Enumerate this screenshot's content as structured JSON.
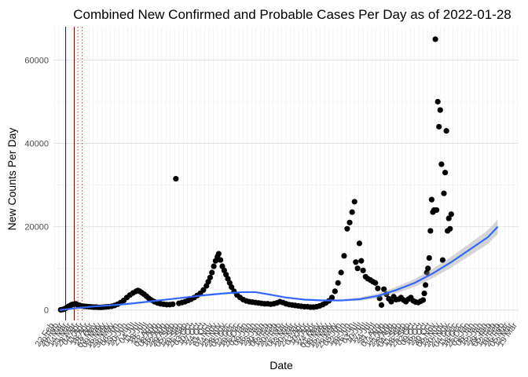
{
  "chart_data": {
    "type": "scatter",
    "title": "Combined New Confirmed and Probable Cases Per Day as of 2022-01-28",
    "xlabel": "Date",
    "ylabel": "New Counts Per Day",
    "yticks": [
      0,
      20000,
      40000,
      60000
    ],
    "ylim": [
      -2500,
      68000
    ],
    "xlim_days": [
      -10,
      750
    ],
    "grid": true,
    "start_date": "2020-03-01",
    "vlines": [
      {
        "day": 10,
        "color": "#0000cc",
        "style": "solid"
      },
      {
        "day": 24,
        "color": "#8b0000",
        "style": "solid"
      },
      {
        "day": 30,
        "color": "#cc3333",
        "style": "dotted"
      },
      {
        "day": 37,
        "color": "#cc3333",
        "style": "dotted"
      }
    ],
    "trend_color": "#3366ff",
    "trend": [
      [
        0,
        0
      ],
      [
        30,
        500
      ],
      [
        60,
        900
      ],
      [
        90,
        1200
      ],
      [
        120,
        1600
      ],
      [
        150,
        2100
      ],
      [
        180,
        2600
      ],
      [
        210,
        3100
      ],
      [
        240,
        3600
      ],
      [
        270,
        4000
      ],
      [
        300,
        4300
      ],
      [
        320,
        4300
      ],
      [
        340,
        3800
      ],
      [
        370,
        3000
      ],
      [
        400,
        2500
      ],
      [
        430,
        2300
      ],
      [
        460,
        2300
      ],
      [
        490,
        2600
      ],
      [
        520,
        3400
      ],
      [
        550,
        4800
      ],
      [
        580,
        6500
      ],
      [
        610,
        8800
      ],
      [
        640,
        11500
      ],
      [
        670,
        14500
      ],
      [
        700,
        17500
      ],
      [
        716,
        20000
      ]
    ],
    "points": [
      [
        2,
        50
      ],
      [
        5,
        120
      ],
      [
        8,
        250
      ],
      [
        10,
        400
      ],
      [
        12,
        600
      ],
      [
        15,
        900
      ],
      [
        18,
        1100
      ],
      [
        20,
        1300
      ],
      [
        23,
        1400
      ],
      [
        26,
        1500
      ],
      [
        28,
        1350
      ],
      [
        30,
        1200
      ],
      [
        33,
        1100
      ],
      [
        36,
        1000
      ],
      [
        40,
        900
      ],
      [
        44,
        850
      ],
      [
        48,
        800
      ],
      [
        52,
        750
      ],
      [
        56,
        700
      ],
      [
        60,
        700
      ],
      [
        64,
        650
      ],
      [
        68,
        650
      ],
      [
        72,
        700
      ],
      [
        76,
        750
      ],
      [
        80,
        800
      ],
      [
        85,
        900
      ],
      [
        90,
        1100
      ],
      [
        95,
        1400
      ],
      [
        100,
        1800
      ],
      [
        105,
        2300
      ],
      [
        110,
        3000
      ],
      [
        115,
        3600
      ],
      [
        120,
        4100
      ],
      [
        125,
        4500
      ],
      [
        128,
        4700
      ],
      [
        131,
        4500
      ],
      [
        134,
        4200
      ],
      [
        138,
        3800
      ],
      [
        142,
        3300
      ],
      [
        146,
        2800
      ],
      [
        150,
        2400
      ],
      [
        155,
        2000
      ],
      [
        160,
        1700
      ],
      [
        165,
        1500
      ],
      [
        170,
        1400
      ],
      [
        175,
        1300
      ],
      [
        180,
        1300
      ],
      [
        185,
        1400
      ],
      [
        190,
        31500
      ],
      [
        195,
        1600
      ],
      [
        200,
        1800
      ],
      [
        205,
        2000
      ],
      [
        210,
        2300
      ],
      [
        215,
        2600
      ],
      [
        220,
        3000
      ],
      [
        225,
        3500
      ],
      [
        230,
        4000
      ],
      [
        235,
        4800
      ],
      [
        240,
        5800
      ],
      [
        243,
        6800
      ],
      [
        246,
        7800
      ],
      [
        249,
        9000
      ],
      [
        252,
        10500
      ],
      [
        255,
        11800
      ],
      [
        258,
        12800
      ],
      [
        260,
        13500
      ],
      [
        263,
        12000
      ],
      [
        266,
        10500
      ],
      [
        269,
        9500
      ],
      [
        272,
        8500
      ],
      [
        275,
        7500
      ],
      [
        278,
        6500
      ],
      [
        281,
        5500
      ],
      [
        285,
        4500
      ],
      [
        290,
        3600
      ],
      [
        295,
        3000
      ],
      [
        300,
        2500
      ],
      [
        305,
        2200
      ],
      [
        310,
        2000
      ],
      [
        315,
        1900
      ],
      [
        320,
        1800
      ],
      [
        325,
        1700
      ],
      [
        330,
        1600
      ],
      [
        335,
        1500
      ],
      [
        340,
        1500
      ],
      [
        345,
        1400
      ],
      [
        350,
        1500
      ],
      [
        355,
        1700
      ],
      [
        360,
        2000
      ],
      [
        365,
        1800
      ],
      [
        370,
        1500
      ],
      [
        375,
        1300
      ],
      [
        380,
        1200
      ],
      [
        385,
        1100
      ],
      [
        390,
        1000
      ],
      [
        395,
        900
      ],
      [
        400,
        800
      ],
      [
        405,
        800
      ],
      [
        410,
        700
      ],
      [
        415,
        700
      ],
      [
        420,
        800
      ],
      [
        425,
        1000
      ],
      [
        430,
        1300
      ],
      [
        435,
        1700
      ],
      [
        440,
        2200
      ],
      [
        445,
        3000
      ],
      [
        450,
        4500
      ],
      [
        455,
        6500
      ],
      [
        460,
        9000
      ],
      [
        465,
        13000
      ],
      [
        470,
        19500
      ],
      [
        474,
        21000
      ],
      [
        478,
        23500
      ],
      [
        482,
        26000
      ],
      [
        484,
        11500
      ],
      [
        487,
        10000
      ],
      [
        490,
        16000
      ],
      [
        493,
        11800
      ],
      [
        496,
        9500
      ],
      [
        500,
        8000
      ],
      [
        504,
        7500
      ],
      [
        508,
        7200
      ],
      [
        512,
        6800
      ],
      [
        516,
        6500
      ],
      [
        520,
        5200
      ],
      [
        523,
        2800
      ],
      [
        526,
        1200
      ],
      [
        530,
        5000
      ],
      [
        534,
        3800
      ],
      [
        538,
        2700
      ],
      [
        542,
        2000
      ],
      [
        546,
        3200
      ],
      [
        550,
        2500
      ],
      [
        554,
        2600
      ],
      [
        558,
        3000
      ],
      [
        562,
        2400
      ],
      [
        566,
        2000
      ],
      [
        570,
        2600
      ],
      [
        574,
        3000
      ],
      [
        578,
        2200
      ],
      [
        582,
        1900
      ],
      [
        586,
        1800
      ],
      [
        590,
        2100
      ],
      [
        594,
        2400
      ],
      [
        596,
        4000
      ],
      [
        598,
        6000
      ],
      [
        600,
        9000
      ],
      [
        602,
        10000
      ],
      [
        604,
        12500
      ],
      [
        606,
        19000
      ],
      [
        608,
        26500
      ],
      [
        610,
        23500
      ],
      [
        612,
        24000
      ],
      [
        614,
        65000
      ],
      [
        616,
        24000
      ],
      [
        618,
        50000
      ],
      [
        620,
        44000
      ],
      [
        622,
        48000
      ],
      [
        624,
        35000
      ],
      [
        626,
        12000
      ],
      [
        628,
        28000
      ],
      [
        630,
        33000
      ],
      [
        632,
        43000
      ],
      [
        634,
        19000
      ],
      [
        636,
        22000
      ],
      [
        638,
        19500
      ],
      [
        640,
        23000
      ]
    ]
  }
}
